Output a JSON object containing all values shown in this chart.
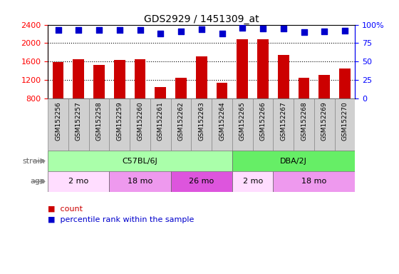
{
  "title": "GDS2929 / 1451309_at",
  "samples": [
    "GSM152256",
    "GSM152257",
    "GSM152258",
    "GSM152259",
    "GSM152260",
    "GSM152261",
    "GSM152262",
    "GSM152263",
    "GSM152264",
    "GSM152265",
    "GSM152266",
    "GSM152267",
    "GSM152268",
    "GSM152269",
    "GSM152270"
  ],
  "counts": [
    1590,
    1650,
    1530,
    1630,
    1650,
    1050,
    1250,
    1710,
    1140,
    2080,
    2080,
    1740,
    1250,
    1310,
    1450
  ],
  "percentiles": [
    93,
    93,
    93,
    93,
    93,
    88,
    91,
    94,
    88,
    96,
    95,
    95,
    90,
    91,
    92
  ],
  "bar_color": "#cc0000",
  "dot_color": "#0000cc",
  "ylim_left": [
    800,
    2400
  ],
  "ylim_right": [
    0,
    100
  ],
  "yticks_left": [
    800,
    1200,
    1600,
    2000,
    2400
  ],
  "yticks_right": [
    0,
    25,
    50,
    75,
    100
  ],
  "strain_labels": [
    {
      "text": "C57BL/6J",
      "start": 0,
      "end": 8,
      "color": "#aaffaa"
    },
    {
      "text": "DBA/2J",
      "start": 9,
      "end": 14,
      "color": "#66ee66"
    }
  ],
  "age_labels": [
    {
      "text": "2 mo",
      "start": 0,
      "end": 2,
      "color": "#ffddff"
    },
    {
      "text": "18 mo",
      "start": 3,
      "end": 5,
      "color": "#ee99ee"
    },
    {
      "text": "26 mo",
      "start": 6,
      "end": 8,
      "color": "#dd55dd"
    },
    {
      "text": "2 mo",
      "start": 9,
      "end": 10,
      "color": "#ffddff"
    },
    {
      "text": "18 mo",
      "start": 11,
      "end": 14,
      "color": "#ee99ee"
    }
  ],
  "xlabel_bg": "#d0d0d0",
  "grid_color": "#000000",
  "grid_linestyle": "dotted",
  "grid_linewidth": 0.8,
  "bar_width": 0.55,
  "dot_size": 28,
  "left_tick_color": "red",
  "right_tick_color": "blue",
  "legend_count_color": "#cc0000",
  "legend_pct_color": "#0000cc"
}
